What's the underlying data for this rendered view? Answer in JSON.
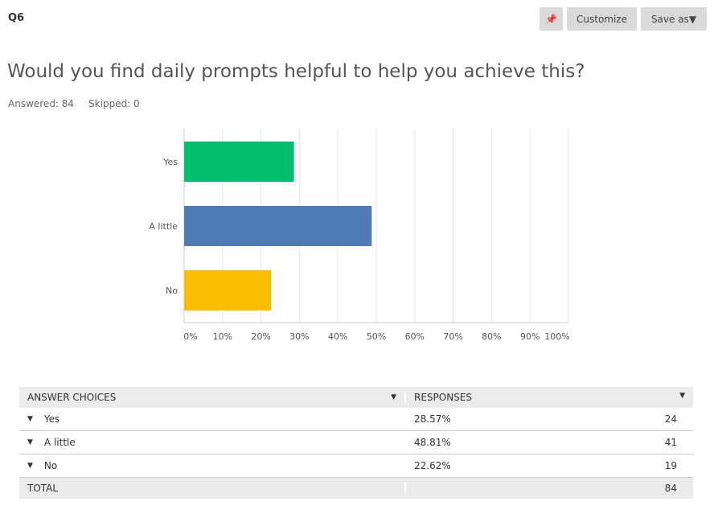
{
  "question_number": "Q6",
  "toolbar": {
    "pin_icon": "pin-icon",
    "customize": "Customize",
    "save_as": "Save as"
  },
  "title": "Would you find daily prompts helpful to help you achieve this?",
  "answered": "Answered: 84",
  "skipped": "Skipped: 0",
  "chart_data": {
    "type": "bar",
    "orientation": "horizontal",
    "categories": [
      "Yes",
      "A little",
      "No"
    ],
    "values": [
      28.57,
      48.81,
      22.62
    ],
    "colors": [
      "#00bf6f",
      "#507cb6",
      "#f9be00"
    ],
    "xlim": [
      0,
      100
    ],
    "xticks": [
      "0%",
      "10%",
      "20%",
      "30%",
      "40%",
      "50%",
      "60%",
      "70%",
      "80%",
      "90%",
      "100%"
    ],
    "grid": true
  },
  "table": {
    "headers": [
      "ANSWER CHOICES",
      "RESPONSES"
    ],
    "rows": [
      {
        "choice": "Yes",
        "pct": "28.57%",
        "count": "24"
      },
      {
        "choice": "A little",
        "pct": "48.81%",
        "count": "41"
      },
      {
        "choice": "No",
        "pct": "22.62%",
        "count": "19"
      }
    ],
    "total_label": "TOTAL",
    "total": "84"
  }
}
